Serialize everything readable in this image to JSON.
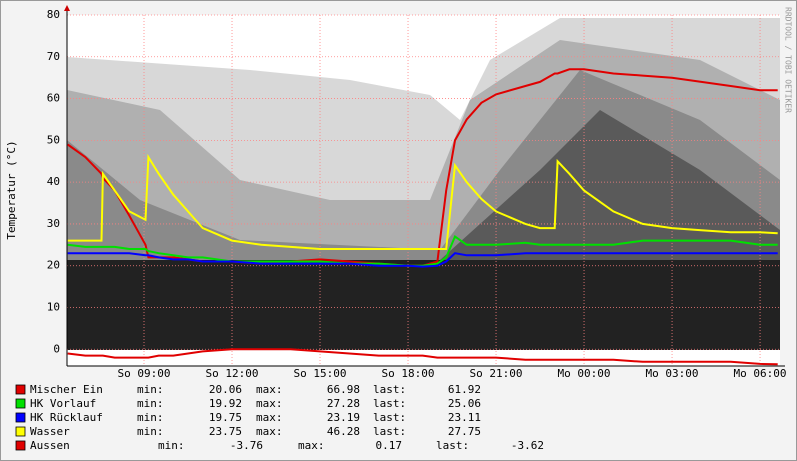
{
  "chart_data": {
    "type": "line",
    "y_label": "Temperatur (°C)",
    "side_note": "RRDTOOL / TOBI OETIKER",
    "xlim": [
      6.375,
      30.68
    ],
    "xticks": [
      {
        "value": 9,
        "label": "So 09:00"
      },
      {
        "value": 12,
        "label": "So 12:00"
      },
      {
        "value": 15,
        "label": "So 15:00"
      },
      {
        "value": 18,
        "label": "So 18:00"
      },
      {
        "value": 21,
        "label": "So 21:00"
      },
      {
        "value": 24,
        "label": "Mo 00:00"
      },
      {
        "value": 27,
        "label": "Mo 03:00"
      },
      {
        "value": 30,
        "label": "Mo 06:00"
      }
    ],
    "ylim": [
      -4,
      80
    ],
    "yticks": [
      0,
      10,
      20,
      30,
      40,
      50,
      60,
      70,
      80
    ],
    "grid": true,
    "stat_labels": [
      "min:",
      "max:",
      "last:"
    ],
    "x": [
      6.4,
      7.0,
      7.55,
      7.6,
      8.0,
      8.5,
      9.05,
      9.15,
      9.5,
      10,
      10.5,
      11,
      12,
      13,
      14,
      15,
      16,
      17,
      18,
      18.5,
      19,
      19.3,
      19.6,
      20.0,
      20.5,
      21,
      22,
      22.5,
      23.0,
      23.1,
      23.5,
      24,
      25,
      26,
      27,
      28,
      29,
      30,
      30.6
    ],
    "series": [
      {
        "name": "Mischer Ein",
        "color": "#e00000",
        "min": 20.06,
        "max": 66.98,
        "last": 61.92,
        "values": [
          49,
          46,
          42,
          41,
          38,
          32,
          25,
          22,
          22,
          22,
          21.5,
          21,
          21,
          20.5,
          21,
          21.5,
          21,
          20.5,
          20,
          20,
          21,
          38,
          50,
          55,
          59,
          61,
          63,
          64,
          66,
          66,
          67,
          67,
          66,
          65.5,
          65,
          64,
          63,
          62,
          62
        ]
      },
      {
        "name": "HK Vorlauf",
        "color": "#00e000",
        "min": 19.92,
        "max": 27.28,
        "last": 25.06,
        "values": [
          25,
          24.5,
          24.5,
          24.5,
          24.5,
          24,
          24,
          23.5,
          23,
          22.5,
          22,
          22,
          21,
          21,
          21,
          21,
          20.5,
          20.5,
          20,
          20,
          20.5,
          22,
          27,
          25,
          25,
          25,
          25.5,
          25,
          25,
          25,
          25,
          25,
          25,
          26,
          26,
          26,
          26,
          25,
          25
        ]
      },
      {
        "name": "HK Rücklauf",
        "color": "#0000ff",
        "min": 19.75,
        "max": 23.19,
        "last": 23.11,
        "values": [
          23,
          23,
          23,
          23,
          23,
          23,
          22.5,
          22.5,
          22,
          21.5,
          21.5,
          21,
          21,
          20.5,
          20.5,
          20.5,
          20.5,
          20,
          20,
          19.8,
          20,
          21,
          23,
          22.5,
          22.5,
          22.5,
          23,
          23,
          23,
          23,
          23,
          23,
          23,
          23,
          23,
          23,
          23,
          23,
          23
        ]
      },
      {
        "name": "Wasser",
        "color": "#ffff00",
        "min": 23.75,
        "max": 46.28,
        "last": 27.75,
        "values": [
          26,
          26,
          26,
          42,
          38,
          33,
          31,
          46,
          42,
          37,
          33,
          29,
          26,
          25,
          24.5,
          24,
          24,
          24,
          24,
          24,
          24,
          24,
          44,
          40,
          36,
          33,
          30,
          29,
          29,
          45,
          42,
          38,
          33,
          30,
          29,
          28.5,
          28,
          28,
          27.75
        ]
      },
      {
        "name": "Aussen",
        "color": "#e00000",
        "min": -3.76,
        "max": 0.17,
        "last": -3.62,
        "values": [
          -1,
          -1.5,
          -1.5,
          -1.5,
          -2,
          -2,
          -2,
          -2,
          -1.5,
          -1.5,
          -1,
          -0.5,
          0,
          0,
          0,
          -0.5,
          -1,
          -1.5,
          -1.5,
          -1.5,
          -2,
          -2,
          -2,
          -2,
          -2,
          -2,
          -2.5,
          -2.5,
          -2.5,
          -2.5,
          -2.5,
          -2.5,
          -2.5,
          -3,
          -3,
          -3,
          -3,
          -3.5,
          -3.6
        ]
      }
    ]
  }
}
